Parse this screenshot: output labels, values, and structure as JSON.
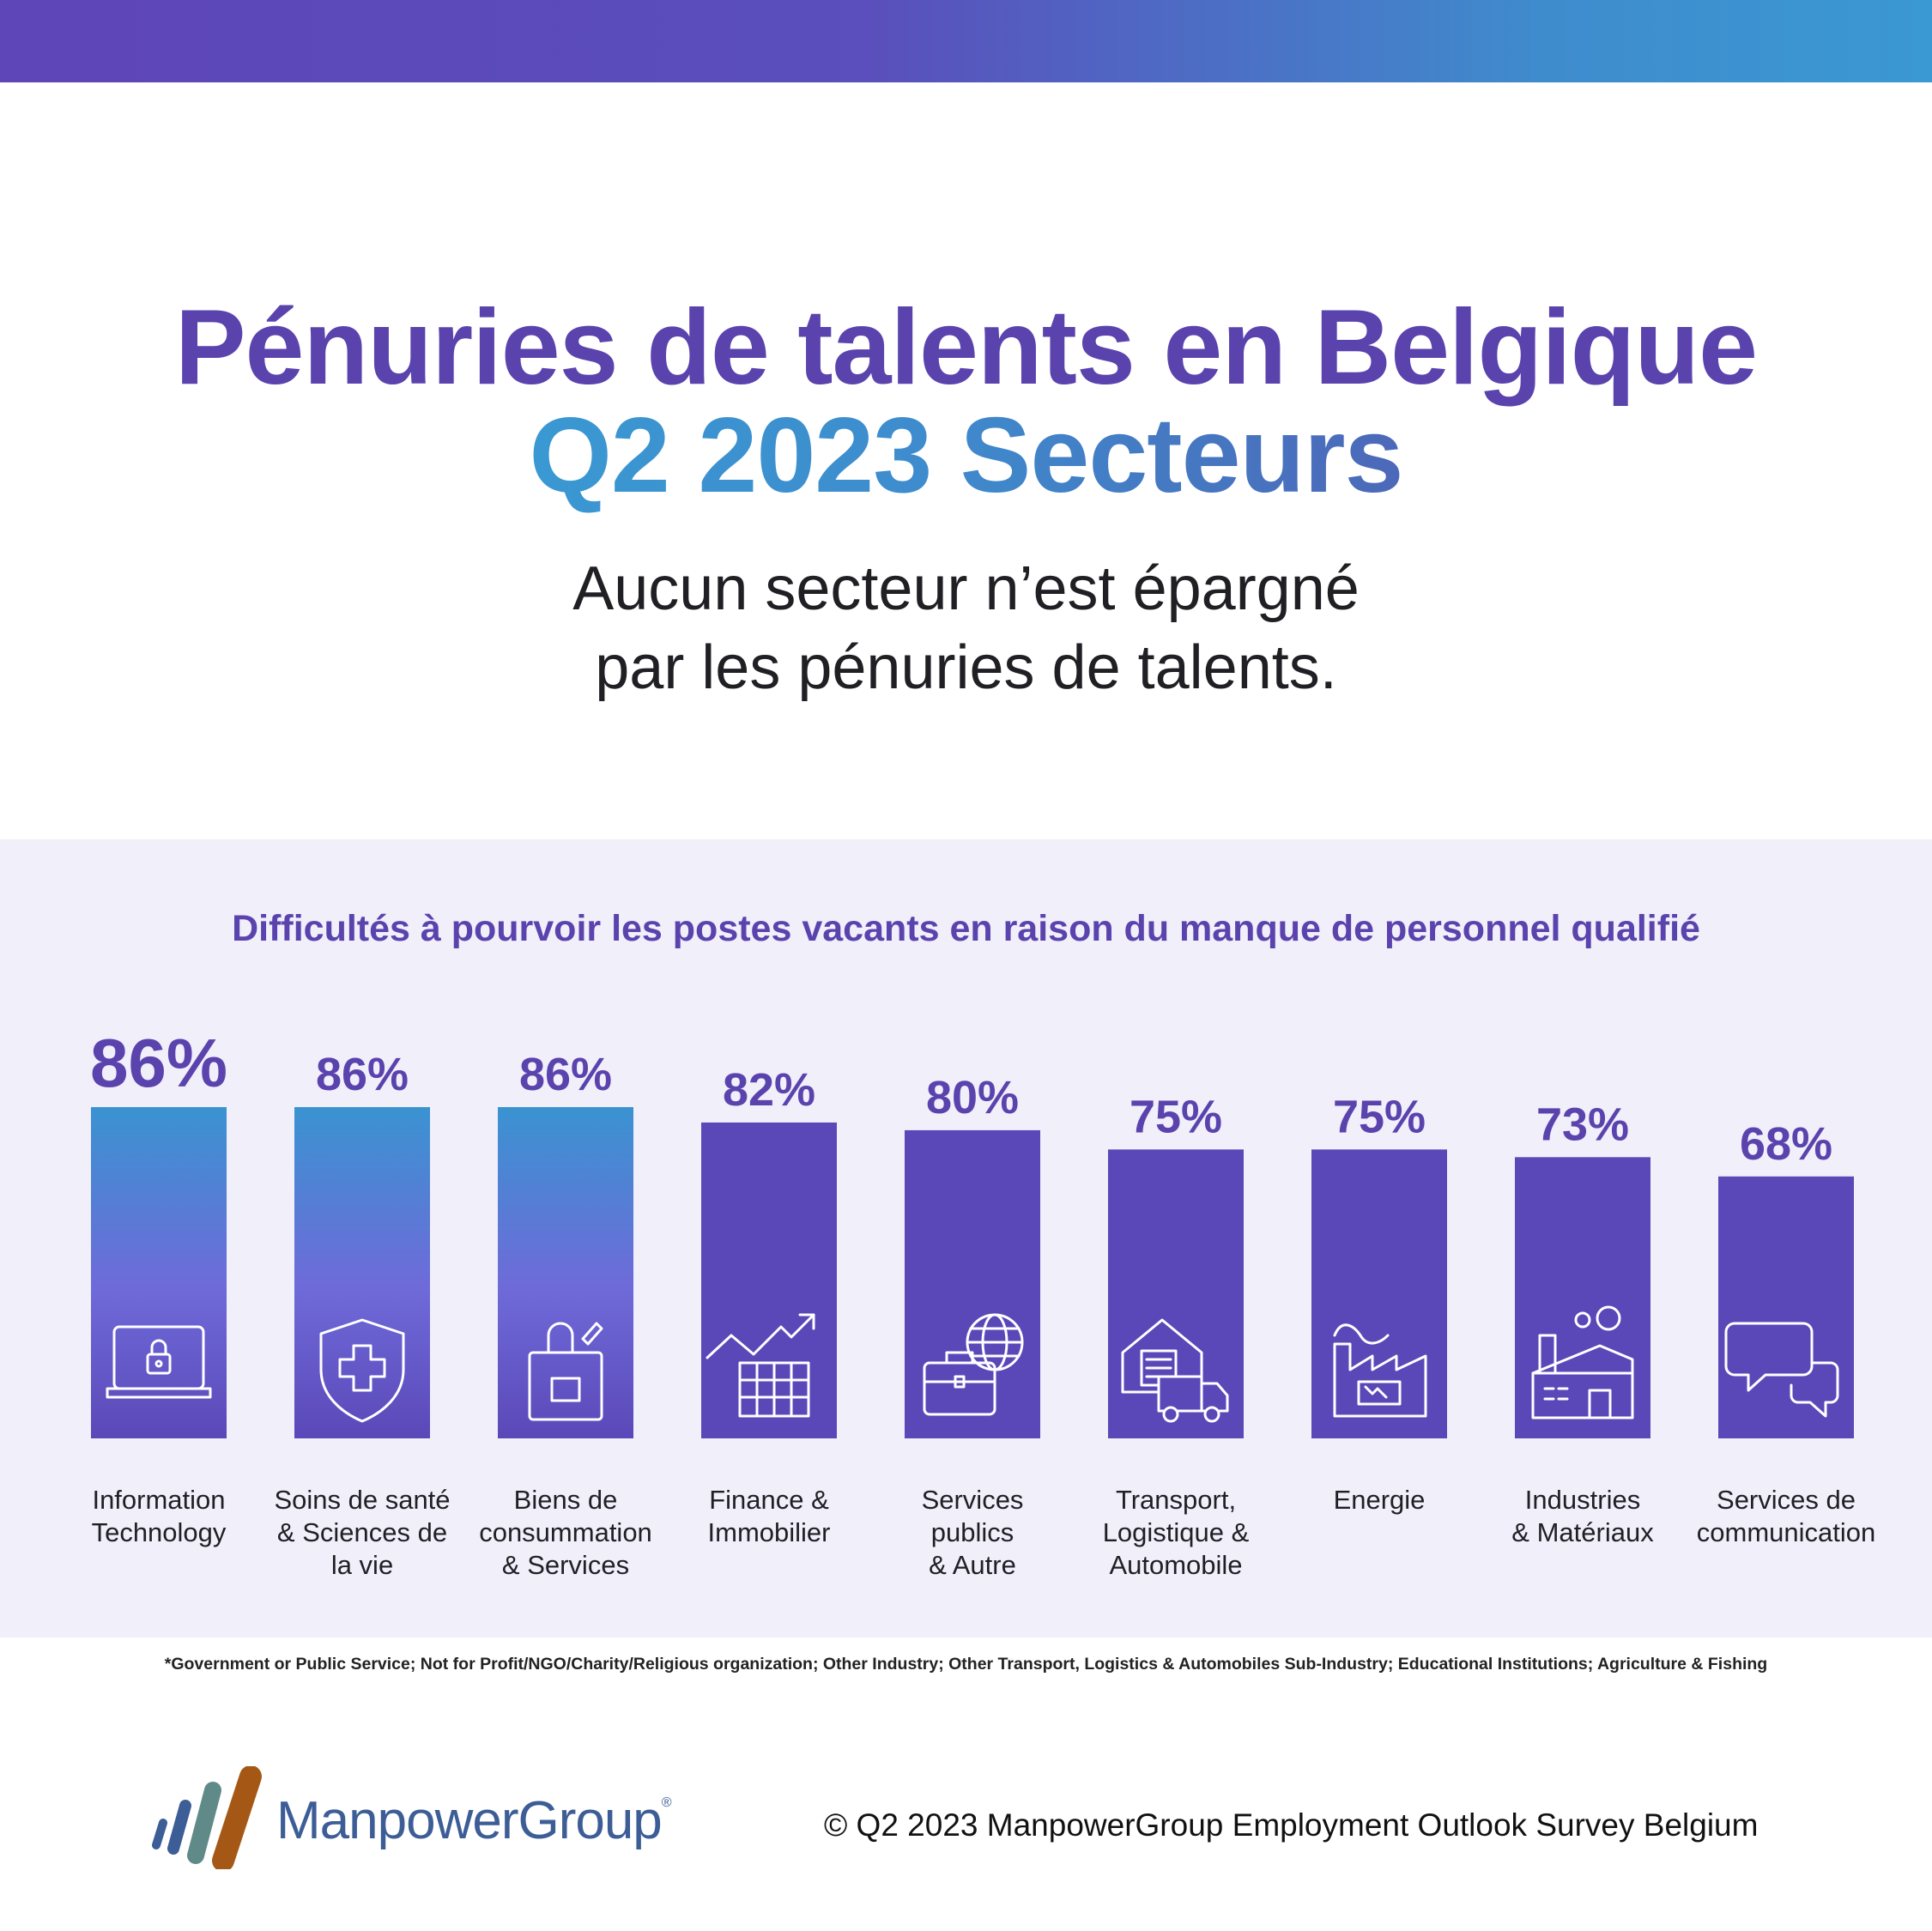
{
  "header": {
    "title_line1": "Pénuries de talents en Belgique",
    "title_line2": "Q2 2023 Secteurs",
    "subtitle_line1": "Aucun secteur n’est épargné",
    "subtitle_line2": "par les pénuries de talents."
  },
  "chart_data": {
    "type": "bar",
    "title": "Difficultés à pourvoir les postes vacants en raison du manque de personnel qualifié",
    "categories": [
      [
        "Information",
        "Technology"
      ],
      [
        "Soins de santé",
        "& Sciences de",
        "la vie"
      ],
      [
        "Biens de",
        "consummation",
        "& Services"
      ],
      [
        "Finance &",
        "Immobilier"
      ],
      [
        "Services",
        "publics",
        "& Autre"
      ],
      [
        "Transport,",
        "Logistique &",
        "Automobile"
      ],
      [
        "Energie"
      ],
      [
        "Industries",
        "& Matériaux"
      ],
      [
        "Services de",
        "communication"
      ]
    ],
    "values": [
      86,
      86,
      86,
      82,
      80,
      75,
      75,
      73,
      68
    ],
    "value_labels": [
      "86%",
      "86%",
      "86%",
      "82%",
      "80%",
      "75%",
      "75%",
      "73%",
      "68%"
    ],
    "icons": [
      "laptop-lock-icon",
      "shield-cross-icon",
      "shopping-bag-icon",
      "growth-chart-icon",
      "briefcase-globe-icon",
      "warehouse-truck-icon",
      "factory-energy-icon",
      "factory-icon",
      "chat-bubbles-icon"
    ],
    "highlight_colors": [
      "#3a93d1",
      "#6f6ad9"
    ],
    "bar_color": "#5b48b8",
    "label_color": "#5b43ae",
    "ylim": [
      0,
      86
    ],
    "grid": false,
    "legend": "none"
  },
  "footnote": "*Government or Public Service; Not for Profit/NGO/Charity/Religious organization; Other Industry; Other Transport, Logistics & Automobiles Sub-Industry; Educational Institutions; Agriculture & Fishing",
  "footer": {
    "logo_text": "ManpowerGroup",
    "logo_mark": "®",
    "copyright": "© Q2 2023 ManpowerGroup Employment Outlook Survey Belgium"
  }
}
